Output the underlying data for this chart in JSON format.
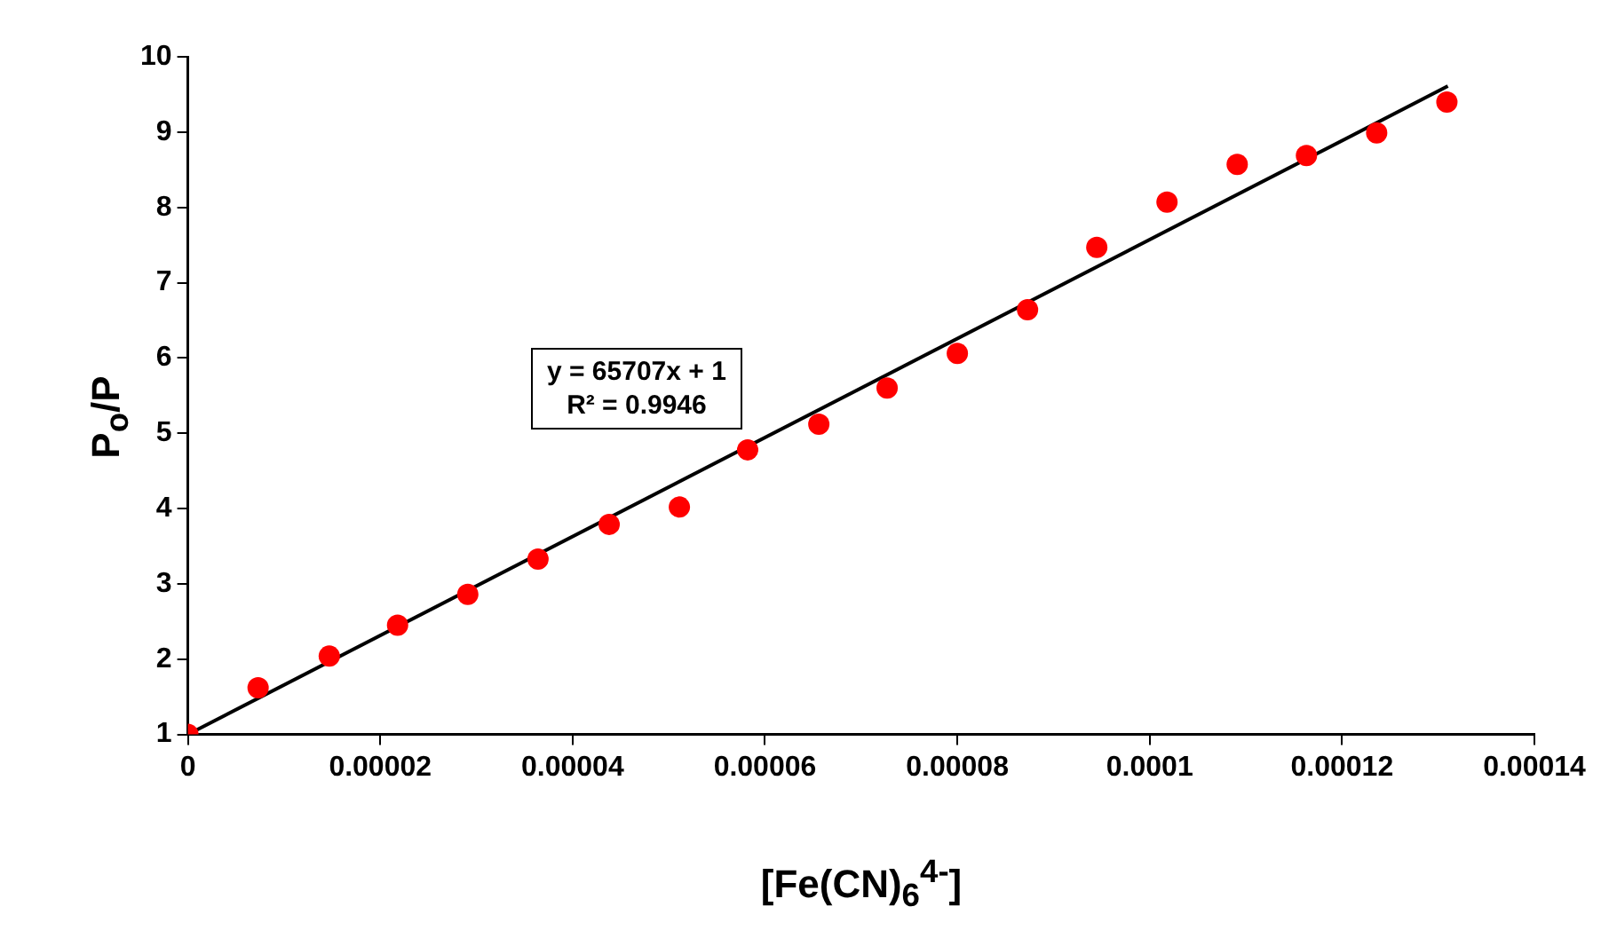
{
  "chart_data": {
    "type": "scatter",
    "xlabel": "[Fe(CN)$_{6}$$^{4-}$]",
    "ylabel": "P$_{o}$/P",
    "x": [
      0,
      7.3e-06,
      1.47e-05,
      2.18e-05,
      2.91e-05,
      3.64e-05,
      4.38e-05,
      5.11e-05,
      5.82e-05,
      6.56e-05,
      7.27e-05,
      8e-05,
      8.73e-05,
      9.45e-05,
      0.0001018,
      0.0001091,
      0.0001163,
      0.0001236,
      0.0001309
    ],
    "series": [
      {
        "type": "scatter",
        "color": "#ff0000",
        "marker": "circle",
        "values": [
          1,
          1.62,
          2.04,
          2.45,
          2.86,
          3.33,
          3.79,
          4.02,
          4.78,
          5.12,
          5.6,
          6.06,
          6.64,
          7.47,
          8.07,
          8.57,
          8.69,
          8.99,
          9.4
        ]
      },
      {
        "type": "line",
        "color": "#000000",
        "marker": "none",
        "x": [
          0,
          0.000131
        ],
        "values": [
          1,
          9.61
        ]
      }
    ],
    "xlim": [
      0,
      0.00014
    ],
    "xticks": [
      0,
      {
        "value": 2e-05,
        "label": "0.00002"
      },
      {
        "value": 4e-05,
        "label": "0.00004"
      },
      {
        "value": 6e-05,
        "label": "0.00006"
      },
      {
        "value": 8e-05,
        "label": "0.00008"
      },
      0.0001,
      0.00012,
      0.00014
    ],
    "ylim": [
      1,
      10
    ],
    "yticks": [
      1,
      2,
      3,
      4,
      5,
      6,
      7,
      8,
      9,
      10
    ],
    "annotations": [
      "y = 65707x + 1",
      "R² = 0.9946"
    ],
    "grid": false,
    "legend": false
  }
}
